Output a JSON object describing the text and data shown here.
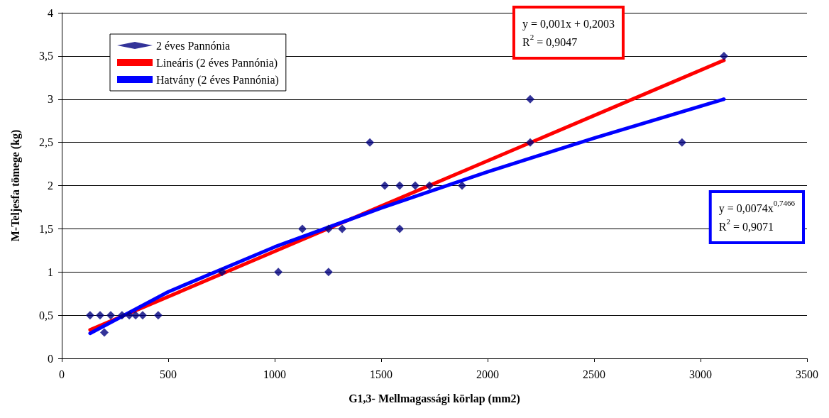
{
  "chart_data": {
    "type": "scatter",
    "xlabel": "G1,3- Mellmagassági körlap (mm2)",
    "ylabel": "M-Teljesfa tömege (kg)",
    "xlim": [
      0,
      3500
    ],
    "xticks": [
      0,
      500,
      1000,
      1500,
      2000,
      2500,
      3000,
      3500
    ],
    "ylim": [
      0,
      4
    ],
    "yticks": [
      0,
      {
        "value": 0.5,
        "label": "0,5"
      },
      1,
      {
        "value": 1.5,
        "label": "1,5"
      },
      2,
      {
        "value": 2.5,
        "label": "2,5"
      },
      3,
      {
        "value": 3.5,
        "label": "3,5"
      },
      4
    ],
    "grid": "y",
    "legend": "top left",
    "marker": "diamond",
    "series": [
      {
        "name": "2 éves Pannónia",
        "color": "#000080",
        "x": [
          133,
          180,
          200,
          230,
          283,
          317,
          347,
          380,
          453,
          753,
          1017,
          1130,
          1253,
          1253,
          1317,
          1447,
          1517,
          1587,
          1587,
          1660,
          1727,
          1880,
          2200,
          2200,
          2913,
          3110
        ],
        "values": [
          0.5,
          0.5,
          0.3,
          0.5,
          0.5,
          0.5,
          0.5,
          0.5,
          0.5,
          1,
          1,
          1.5,
          1.5,
          1,
          1.5,
          2.5,
          2,
          2,
          1.5,
          2,
          2,
          2,
          2.5,
          3,
          2.5,
          3.5
        ]
      },
      {
        "name": "Lineáris (2 éves Pannónia)",
        "type": "line",
        "color": "#ff0000",
        "marker": "none",
        "line_style": "solid",
        "x": [
          133,
          3110
        ],
        "values": [
          0.33,
          3.45
        ]
      },
      {
        "name": "Hatvány (2 éves Pannónia)",
        "type": "line",
        "color": "#0000ff",
        "marker": "none",
        "line_style": "solid",
        "x": [
          133,
          500,
          1000,
          1500,
          2000,
          2500,
          3110
        ],
        "values": [
          0.29,
          0.77,
          1.29,
          1.74,
          2.16,
          2.55,
          3.0
        ]
      }
    ],
    "annotations": [
      "y = 0,001x + 0,2003\nR$^{2}$ = 0,9047",
      "y = 0,0074x$^{0,7466}$\nR$^{2}$ = 0,9071"
    ]
  }
}
